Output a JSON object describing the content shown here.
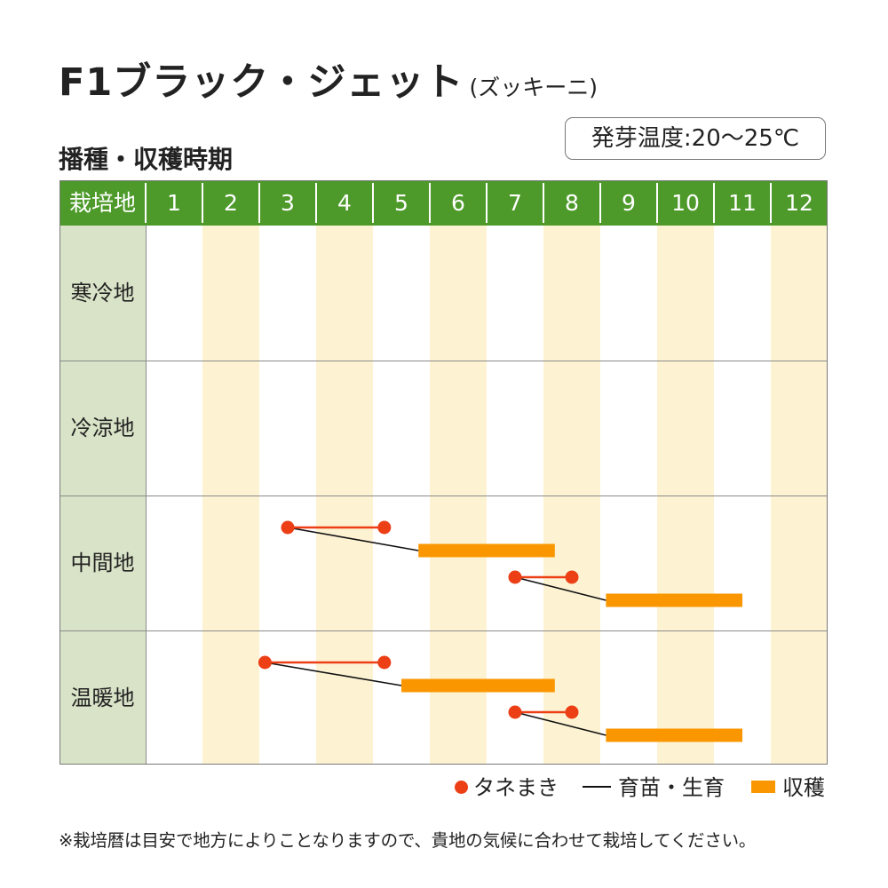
{
  "title": "F1ブラック・ジェット",
  "subtitle": "(ズッキーニ)",
  "germination_temp": "発芽温度:20〜25℃",
  "section_title": "播種・収穫時期",
  "chart_data": {
    "type": "table",
    "title": "播種・収穫時期",
    "corner_label": "栽培地",
    "months": [
      "1",
      "2",
      "3",
      "4",
      "5",
      "6",
      "7",
      "8",
      "9",
      "10",
      "11",
      "12"
    ],
    "regions": [
      "寒冷地",
      "冷涼地",
      "中間地",
      "温暖地"
    ],
    "schedules": [
      {
        "region": "寒冷地",
        "plans": []
      },
      {
        "region": "冷涼地",
        "plans": []
      },
      {
        "region": "中間地",
        "plans": [
          {
            "sowing": [
              3.5,
              5.2
            ],
            "harvest": [
              5.8,
              8.2
            ]
          },
          {
            "sowing": [
              7.5,
              8.5
            ],
            "harvest": [
              9.1,
              11.5
            ]
          }
        ]
      },
      {
        "region": "温暖地",
        "plans": [
          {
            "sowing": [
              3.1,
              5.2
            ],
            "harvest": [
              5.5,
              8.2
            ]
          },
          {
            "sowing": [
              7.5,
              8.5
            ],
            "harvest": [
              9.1,
              11.5
            ]
          }
        ]
      }
    ],
    "legend": [
      {
        "label": "タネまき",
        "color": "#ec3f16"
      },
      {
        "label": "育苗・生育",
        "color": "#111111"
      },
      {
        "label": "収穫",
        "color": "#fa9700"
      }
    ],
    "colors": {
      "header": "#4d9a2a",
      "label_column": "#d8e3c7",
      "shade": "#fdf3d3"
    }
  },
  "note": "※栽培暦は目安で地方によりことなりますので、貴地の気候に合わせて栽培してください。"
}
